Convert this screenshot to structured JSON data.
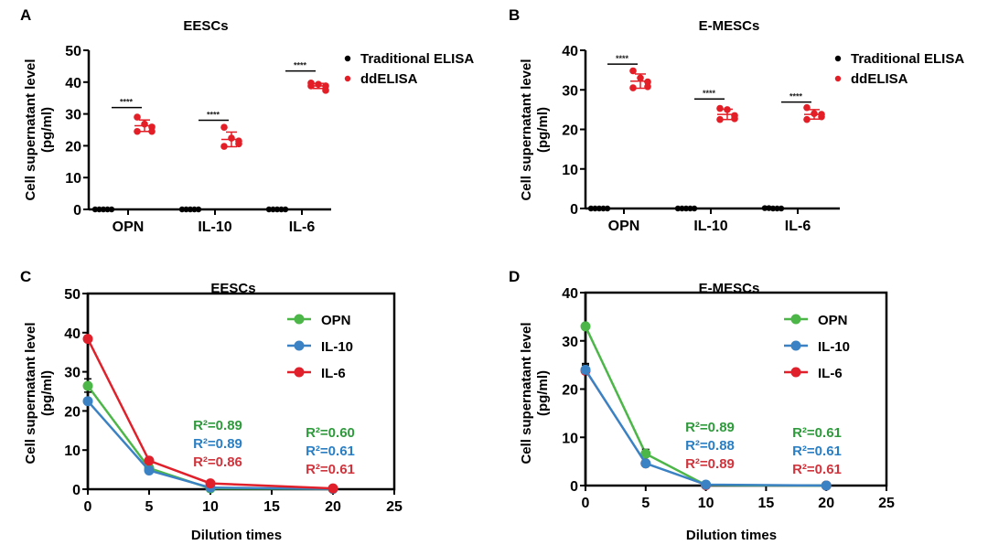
{
  "colors": {
    "axis": "#000000",
    "traditional": "#000000",
    "ddelisa": "#e31e26",
    "opn": "#4cb648",
    "il10": "#3b82c4",
    "il6": "#e0202a",
    "r2_opn": "#2e9a3c",
    "r2_il10": "#2a7fc4",
    "r2_il6": "#d0343c"
  },
  "chart_data": [
    {
      "panel": "A",
      "type": "scatter",
      "title": "EESCs",
      "ylabel_line1": "Cell supernatant level",
      "ylabel_line2": "(pg/ml)",
      "xlabel": "",
      "ylim": [
        0,
        50
      ],
      "yticks": [
        0,
        10,
        20,
        30,
        40,
        50
      ],
      "categories": [
        "OPN",
        "IL-10",
        "IL-6"
      ],
      "legend": {
        "position": "top-right",
        "entries": [
          "Traditional ELISA",
          "ddELISA"
        ]
      },
      "series": [
        {
          "name": "Traditional ELISA",
          "color_key": "traditional",
          "points": [
            [
              0,
              0,
              0,
              0,
              0
            ],
            [
              0,
              0,
              0,
              0,
              0
            ],
            [
              0,
              0,
              0,
              0,
              0
            ]
          ]
        },
        {
          "name": "ddELISA",
          "color_key": "ddelisa",
          "points": [
            [
              29.0,
              26.8,
              25.9,
              24.5,
              24.5
            ],
            [
              25.8,
              22.4,
              21.5,
              19.8,
              20.6
            ],
            [
              39.7,
              39.3,
              38.8,
              38.8,
              37.4
            ]
          ],
          "mean": [
            26.3,
            22.0,
            38.8
          ],
          "sd": [
            1.8,
            2.3,
            0.8
          ]
        }
      ],
      "significance": [
        {
          "category": "OPN",
          "label": "****",
          "y": 32
        },
        {
          "category": "IL-10",
          "label": "****",
          "y": 28
        },
        {
          "category": "IL-6",
          "label": "****",
          "y": 43.5
        }
      ]
    },
    {
      "panel": "B",
      "type": "scatter",
      "title": "E-MESCs",
      "ylabel_line1": "Cell supernatant level",
      "ylabel_line2": "(pg/ml)",
      "xlabel": "",
      "ylim": [
        0,
        40
      ],
      "yticks": [
        0,
        10,
        20,
        30,
        40
      ],
      "categories": [
        "OPN",
        "IL-10",
        "IL-6"
      ],
      "legend": {
        "position": "top-right",
        "entries": [
          "Traditional ELISA",
          "ddELISA"
        ]
      },
      "series": [
        {
          "name": "Traditional ELISA",
          "color_key": "traditional",
          "points": [
            [
              0,
              0,
              0,
              0,
              0
            ],
            [
              0,
              0,
              0,
              0,
              0
            ],
            [
              0.1,
              0.1,
              0,
              0,
              0
            ]
          ]
        },
        {
          "name": "ddELISA",
          "color_key": "ddelisa",
          "points": [
            [
              34.8,
              33.0,
              32.0,
              30.5,
              30.8
            ],
            [
              25.3,
              25.0,
              23.5,
              22.5,
              22.7
            ],
            [
              25.5,
              24.0,
              23.8,
              22.5,
              23.2
            ]
          ],
          "mean": [
            32.2,
            23.8,
            23.8
          ],
          "sd": [
            1.8,
            1.3,
            1.2
          ]
        }
      ],
      "significance": [
        {
          "category": "OPN",
          "label": "****",
          "y": 36.5
        },
        {
          "category": "IL-10",
          "label": "****",
          "y": 27.7
        },
        {
          "category": "IL-6",
          "label": "****",
          "y": 26.9
        }
      ]
    },
    {
      "panel": "C",
      "type": "line",
      "title": "EESCs",
      "ylabel_line1": "Cell supernatant level",
      "ylabel_line2": "(pg/ml)",
      "xlabel": "Dilution times",
      "xlim": [
        0,
        25
      ],
      "xticks": [
        0,
        5,
        10,
        15,
        20,
        25
      ],
      "ylim": [
        0,
        50
      ],
      "yticks": [
        0,
        10,
        20,
        30,
        40,
        50
      ],
      "x": [
        0,
        5,
        10,
        20
      ],
      "legend": {
        "position": "top-right",
        "entries": [
          "OPN",
          "IL-10",
          "IL-6"
        ]
      },
      "series": [
        {
          "name": "OPN",
          "color_key": "opn",
          "values": [
            26.4,
            5.4,
            0.2,
            0.1
          ],
          "err": [
            1.8,
            0.5,
            0.1,
            0
          ]
        },
        {
          "name": "IL-10",
          "color_key": "il10",
          "values": [
            22.5,
            4.8,
            0.4,
            0.1
          ],
          "err": [
            2.3,
            0.4,
            0.1,
            0
          ]
        },
        {
          "name": "IL-6",
          "color_key": "il6",
          "values": [
            38.4,
            7.3,
            1.5,
            0.2
          ],
          "err": [
            0.8,
            0.4,
            0.2,
            0
          ]
        }
      ],
      "annotations": [
        {
          "group": "left",
          "lines": [
            {
              "text": "R²=0.89",
              "color_key": "r2_opn"
            },
            {
              "text": "R²=0.89",
              "color_key": "r2_il10"
            },
            {
              "text": "R²=0.86",
              "color_key": "r2_il6"
            }
          ]
        },
        {
          "group": "right",
          "lines": [
            {
              "text": "R²=0.60",
              "color_key": "r2_opn"
            },
            {
              "text": "R²=0.61",
              "color_key": "r2_il10"
            },
            {
              "text": "R²=0.61",
              "color_key": "r2_il6"
            }
          ]
        }
      ]
    },
    {
      "panel": "D",
      "type": "line",
      "title": "E-MESCs",
      "ylabel_line1": "Cell supernatant level",
      "ylabel_line2": "(pg/ml)",
      "xlabel": "Dilution times",
      "xlim": [
        0,
        25
      ],
      "xticks": [
        0,
        5,
        10,
        15,
        20,
        25
      ],
      "ylim": [
        0,
        40
      ],
      "yticks": [
        0,
        10,
        20,
        30,
        40
      ],
      "x": [
        0,
        5,
        10,
        20
      ],
      "legend": {
        "position": "top-right",
        "entries": [
          "OPN",
          "IL-10",
          "IL-6"
        ]
      },
      "series": [
        {
          "name": "OPN",
          "color_key": "opn",
          "values": [
            33.0,
            6.6,
            0.1,
            0.0
          ],
          "err": [
            0.5,
            0.9,
            0.1,
            0
          ]
        },
        {
          "name": "IL-6",
          "color_key": "il6",
          "values": [
            23.8,
            4.6,
            0.1,
            0.0
          ],
          "err": [
            1.2,
            0.5,
            0.1,
            0
          ]
        },
        {
          "name": "IL-10",
          "color_key": "il10",
          "values": [
            24.0,
            4.6,
            0.2,
            0.0
          ],
          "err": [
            1.3,
            0.5,
            0.1,
            0
          ]
        }
      ],
      "annotations": [
        {
          "group": "left",
          "lines": [
            {
              "text": "R²=0.89",
              "color_key": "r2_opn"
            },
            {
              "text": "R²=0.88",
              "color_key": "r2_il10"
            },
            {
              "text": "R²=0.89",
              "color_key": "r2_il6"
            }
          ]
        },
        {
          "group": "right",
          "lines": [
            {
              "text": "R²=0.61",
              "color_key": "r2_opn"
            },
            {
              "text": "R²=0.61",
              "color_key": "r2_il10"
            },
            {
              "text": "R²=0.61",
              "color_key": "r2_il6"
            }
          ]
        }
      ]
    }
  ]
}
